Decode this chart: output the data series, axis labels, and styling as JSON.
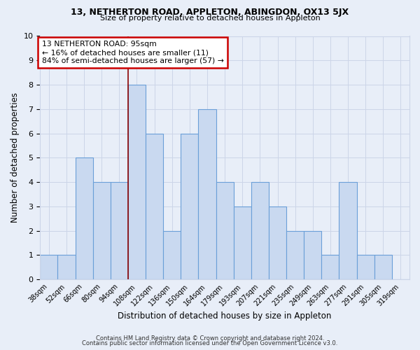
{
  "title1": "13, NETHERTON ROAD, APPLETON, ABINGDON, OX13 5JX",
  "title2": "Size of property relative to detached houses in Appleton",
  "xlabel": "Distribution of detached houses by size in Appleton",
  "ylabel": "Number of detached properties",
  "bar_labels": [
    "38sqm",
    "52sqm",
    "66sqm",
    "80sqm",
    "94sqm",
    "108sqm",
    "122sqm",
    "136sqm",
    "150sqm",
    "164sqm",
    "179sqm",
    "193sqm",
    "207sqm",
    "221sqm",
    "235sqm",
    "249sqm",
    "263sqm",
    "277sqm",
    "291sqm",
    "305sqm",
    "319sqm"
  ],
  "bar_values": [
    1,
    1,
    5,
    4,
    4,
    8,
    6,
    2,
    6,
    7,
    4,
    3,
    4,
    3,
    2,
    2,
    1,
    4,
    1,
    1,
    0
  ],
  "bar_color": "#c9d9f0",
  "bar_edge_color": "#6a9fd8",
  "vline_x": 4.5,
  "vline_color": "#8b0000",
  "annotation_line1": "13 NETHERTON ROAD: 95sqm",
  "annotation_line2": "← 16% of detached houses are smaller (11)",
  "annotation_line3": "84% of semi-detached houses are larger (57) →",
  "annotation_box_facecolor": "#ffffff",
  "annotation_box_edgecolor": "#cc0000",
  "ylim": [
    0,
    10
  ],
  "yticks": [
    0,
    1,
    2,
    3,
    4,
    5,
    6,
    7,
    8,
    9,
    10
  ],
  "grid_color": "#ccd5e8",
  "bg_color": "#e8eef8",
  "footer1": "Contains HM Land Registry data © Crown copyright and database right 2024.",
  "footer2": "Contains public sector information licensed under the Open Government Licence v3.0."
}
